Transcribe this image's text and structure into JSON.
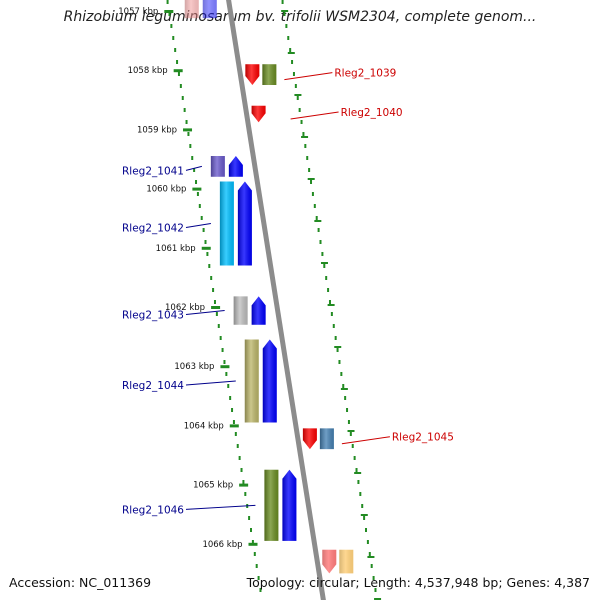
{
  "title": "Rhizobium leguminosarum bv. trifolii WSM2304, complete genom...",
  "footer": {
    "accession": "Accession: NC_011369",
    "topology": "Topology: circular; Length: 4,537,948 bp; Genes: 4,387"
  },
  "colors": {
    "backbone": "#8c8c8c",
    "tick": "#228b22",
    "forward_label": "#00008b",
    "reverse_label": "#cc0000"
  },
  "chart_data": {
    "type": "genome-map",
    "kbp_ticks": [
      {
        "label": "1057 kbp",
        "kbp": 1057
      },
      {
        "label": "1058 kbp",
        "kbp": 1058
      },
      {
        "label": "1059 kbp",
        "kbp": 1059
      },
      {
        "label": "1060 kbp",
        "kbp": 1060
      },
      {
        "label": "1061 kbp",
        "kbp": 1061
      },
      {
        "label": "1062 kbp",
        "kbp": 1062
      },
      {
        "label": "1063 kbp",
        "kbp": 1063
      },
      {
        "label": "1064 kbp",
        "kbp": 1064
      },
      {
        "label": "1065 kbp",
        "kbp": 1065
      },
      {
        "label": "1066 kbp",
        "kbp": 1066
      }
    ],
    "genes": [
      {
        "start": 1056.55,
        "end": 1057.12,
        "strand": "+",
        "colors": [
          "#f08080",
          "#0000ff"
        ],
        "faded": true
      },
      {
        "name": "Rleg2_1039",
        "start": 1057.9,
        "end": 1058.25,
        "strand": "-",
        "colors": [
          "#ff0000",
          "#6b8e23"
        ]
      },
      {
        "name": "Rleg2_1040",
        "start": 1058.6,
        "end": 1058.88,
        "strand": "-",
        "colors": [
          "#ff0000"
        ]
      },
      {
        "name": "Rleg2_1041",
        "start": 1059.45,
        "end": 1059.8,
        "strand": "+",
        "colors": [
          "#6a5acd",
          "#0000ff"
        ]
      },
      {
        "name": "Rleg2_1042",
        "start": 1059.88,
        "end": 1061.3,
        "strand": "+",
        "colors": [
          "#00bfff",
          "#0000ff"
        ]
      },
      {
        "name": "Rleg2_1043",
        "start": 1061.82,
        "end": 1062.3,
        "strand": "+",
        "colors": [
          "#bfbfbf",
          "#0000ff"
        ]
      },
      {
        "name": "Rleg2_1044",
        "start": 1062.55,
        "end": 1063.95,
        "strand": "+",
        "colors": [
          "#bdb76b",
          "#0000ff"
        ]
      },
      {
        "name": "Rleg2_1045",
        "start": 1064.05,
        "end": 1064.4,
        "strand": "-",
        "colors": [
          "#ff0000",
          "#4682b4"
        ]
      },
      {
        "name": "Rleg2_1046",
        "start": 1064.75,
        "end": 1065.95,
        "strand": "+",
        "colors": [
          "#6b8e23",
          "#0000ff"
        ]
      },
      {
        "start": 1066.1,
        "end": 1066.5,
        "strand": "-",
        "colors": [
          "#ff0000",
          "#ffa500"
        ],
        "faded": true
      }
    ]
  }
}
